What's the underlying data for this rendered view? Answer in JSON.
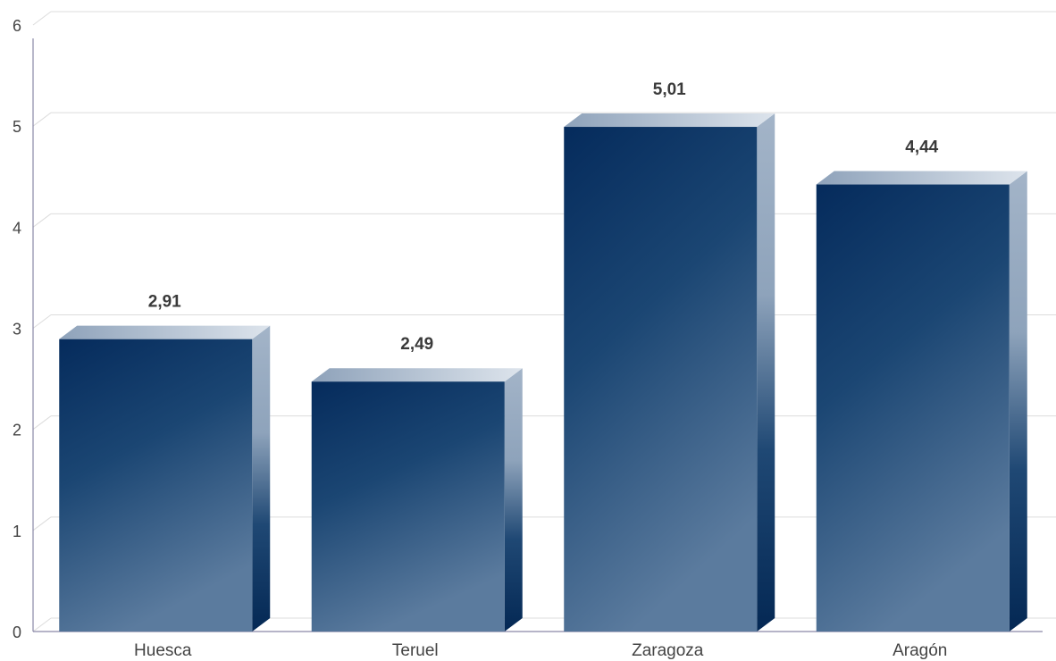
{
  "chart_data": {
    "type": "bar",
    "categories": [
      "Huesca",
      "Teruel",
      "Zaragoza",
      "Aragón"
    ],
    "values": [
      2.91,
      2.49,
      5.01,
      4.44
    ],
    "value_labels": [
      "2,91",
      "2,49",
      "5,01",
      "4,44"
    ],
    "ylim": [
      0,
      6
    ],
    "yticks": [
      "0",
      "1",
      "2",
      "3",
      "4",
      "5",
      "6"
    ],
    "title": "",
    "xlabel": "",
    "ylabel": "",
    "grid": true,
    "style": "3d-gradient",
    "colors": {
      "bar_dark": "#052b5c",
      "bar_light": "#5b7b9e",
      "bar_top_left": "#96aac1",
      "bar_top_right": "#d6dee8",
      "axis": "#8a88a8",
      "grid": "#dcdcdc"
    }
  }
}
